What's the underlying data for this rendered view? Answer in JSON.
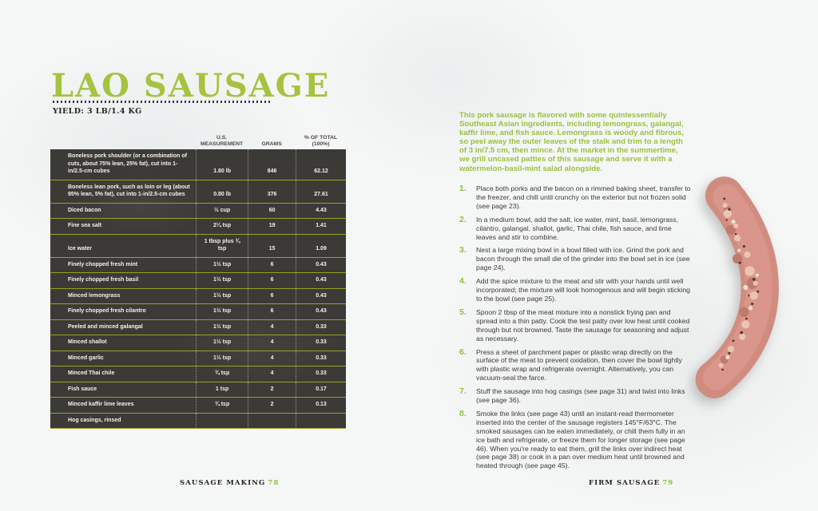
{
  "left_page": {
    "title": "LAO SAUSAGE",
    "yield": "YIELD: 3 LB/1.4 KG",
    "table": {
      "col_headers": {
        "us": [
          "U.S.",
          "MEASUREMENT"
        ],
        "grams": [
          "GRAMS"
        ],
        "pct": [
          "% OF TOTAL",
          "(100%)"
        ]
      },
      "rows": [
        {
          "ingredient": "Boneless pork shoulder (or a combination of cuts, about 75% lean, 25% fat), cut into 1-in/2.5-cm cubes",
          "us": "1.80 lb",
          "grams": "846",
          "pct": "62.12"
        },
        {
          "ingredient": "Boneless lean pork, such as loin or leg (about 95% lean, 5% fat), cut into 1-in/2.5-cm cubes",
          "us": "0.80 lb",
          "grams": "376",
          "pct": "27.61"
        },
        {
          "ingredient": "Diced bacon",
          "us": "½ cup",
          "grams": "60",
          "pct": "4.43"
        },
        {
          "ingredient": "Fine sea salt",
          "us": "2¼ tsp",
          "grams": "19",
          "pct": "1.41"
        },
        {
          "ingredient": "Ice water",
          "us": "1 tbsp plus ¾ tsp",
          "grams": "15",
          "pct": "1.09"
        },
        {
          "ingredient": "Finely chopped fresh mint",
          "us": "1½ tsp",
          "grams": "6",
          "pct": "0.43"
        },
        {
          "ingredient": "Finely chopped fresh basil",
          "us": "1½ tsp",
          "grams": "6",
          "pct": "0.43"
        },
        {
          "ingredient": "Minced lemongrass",
          "us": "1½ tsp",
          "grams": "6",
          "pct": "0.43"
        },
        {
          "ingredient": "Finely chopped fresh cilantro",
          "us": "1½ tsp",
          "grams": "6",
          "pct": "0.43"
        },
        {
          "ingredient": "Peeled and minced galangal",
          "us": "1½ tsp",
          "grams": "4",
          "pct": "0.33"
        },
        {
          "ingredient": "Minced shallot",
          "us": "1½ tsp",
          "grams": "4",
          "pct": "0.33"
        },
        {
          "ingredient": "Minced garlic",
          "us": "1½ tsp",
          "grams": "4",
          "pct": "0.33"
        },
        {
          "ingredient": "Minced Thai chile",
          "us": "¾ tsp",
          "grams": "4",
          "pct": "0.33"
        },
        {
          "ingredient": "Fish sauce",
          "us": "1 tsp",
          "grams": "2",
          "pct": "0.17"
        },
        {
          "ingredient": "Minced kaffir lime leaves",
          "us": "¾ tsp",
          "grams": "2",
          "pct": "0.13"
        },
        {
          "ingredient": "Hog casings, rinsed",
          "us": "",
          "grams": "",
          "pct": ""
        }
      ]
    },
    "footer": {
      "label": "SAUSAGE MAKING",
      "page": "78"
    }
  },
  "right_page": {
    "intro": "This pork sausage is flavored with some quintessentially Southeast Asian ingredients, including lemongrass, galangal, kaffir lime, and fish sauce. Lemongrass is woody and fibrous, so peel away the outer leaves of the stalk and trim to a length of 3 in/7.5 cm, then mince. At the market in the summertime, we grill uncased patties of this sausage and serve it with a watermelon-basil-mint salad alongside.",
    "steps": [
      {
        "num": "1.",
        "text": "Place both porks and the bacon on a rimmed baking sheet, transfer to the freezer, and chill until crunchy on the exterior but not frozen solid (see page 23)."
      },
      {
        "num": "2.",
        "text": "In a medium bowl, add the salt, ice water, mint, basil, lemongrass, cilantro, galangal, shallot, garlic, Thai chile, fish sauce, and lime leaves and stir to combine."
      },
      {
        "num": "3.",
        "text": "Nest a large mixing bowl in a bowl filled with ice. Grind the pork and bacon through the small die of the grinder into the bowl set in ice (see page 24)."
      },
      {
        "num": "4.",
        "text": "Add the spice mixture to the meat and stir with your hands until well incorporated; the mixture will look homogenous and will begin sticking to the bowl (see page 25)."
      },
      {
        "num": "5.",
        "text": "Spoon 2 tbsp of the meat mixture into a nonstick frying pan and spread into a thin patty. Cook the test patty over low heat until cooked through but not browned. Taste the sausage for seasoning and adjust as necessary."
      },
      {
        "num": "6.",
        "text": "Press a sheet of parchment paper or plastic wrap directly on the surface of the meat to prevent oxidation, then cover the bowl tightly with plastic wrap and refrigerate overnight. Alternatively, you can vacuum-seal the farce."
      },
      {
        "num": "7.",
        "text": "Stuff the sausage into hog casings (see page 31) and twist into links (see page 36)."
      },
      {
        "num": "8.",
        "text": "Smoke the links (see page 43) until an instant-read thermometer inserted into the center of the sausage registers 145°F/63°C. The smoked sausages can be eaten immediately, or chill them fully in an ice bath and refrigerate, or freeze them for longer storage (see page 46). When you're ready to eat them, grill the links over indirect heat (see page 38) or cook in a pan over medium heat until browned and heated through (see page 45)."
      }
    ],
    "footer": {
      "label": "FIRM SAUSAGE",
      "page": "79"
    }
  },
  "colors": {
    "accent_green": "#a5c340",
    "step_green": "#8cc13d",
    "table_bg": "#3b3a37",
    "separator_olive": "#99a21f",
    "paper": "#f5f6f6"
  }
}
